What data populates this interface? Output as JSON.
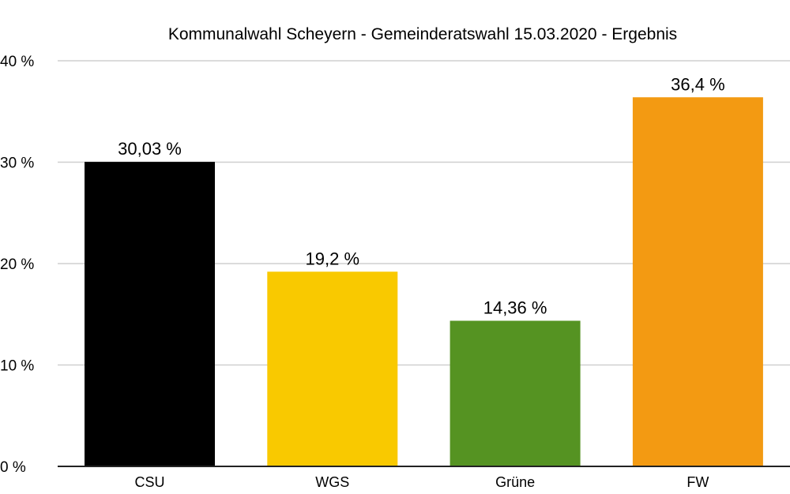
{
  "chart_data": {
    "type": "bar",
    "title": "Kommunalwahl Scheyern - Gemeinderatswahl 15.03.2020 - Ergebnis",
    "categories": [
      "CSU",
      "WGS",
      "Grüne",
      "FW"
    ],
    "values": [
      30.03,
      19.2,
      14.36,
      36.4
    ],
    "data_labels": [
      "30,03 %",
      "19,2 %",
      "14,36 %",
      "36,4 %"
    ],
    "colors": [
      "#000000",
      "#f9c900",
      "#559322",
      "#f39a12"
    ],
    "ylim": [
      0,
      40
    ],
    "yticks": [
      0,
      10,
      20,
      30,
      40
    ],
    "ytick_labels": [
      "0 %",
      "10 %",
      "20 %",
      "30 %",
      "40 %"
    ],
    "xlabel": "",
    "ylabel": "",
    "grid": true,
    "legend": "none"
  }
}
